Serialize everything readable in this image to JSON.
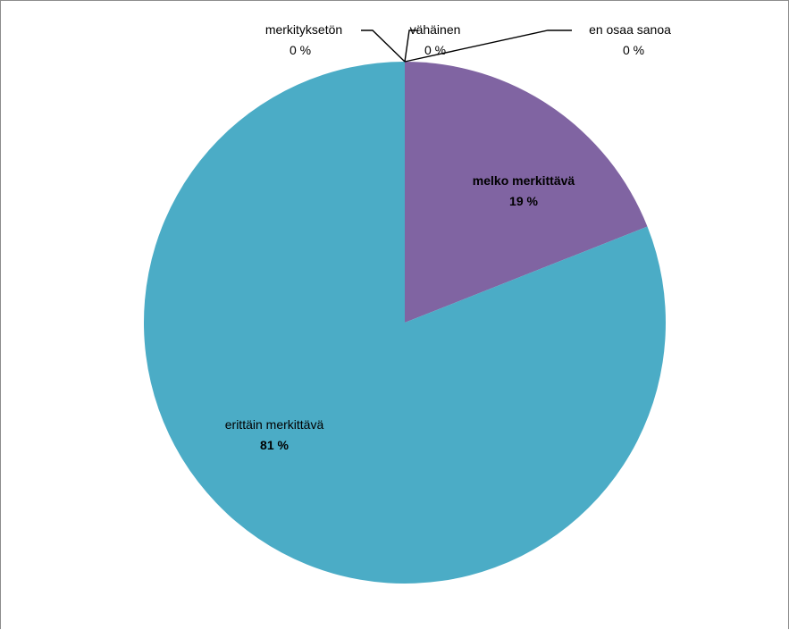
{
  "chart_data": {
    "type": "pie",
    "slices": [
      {
        "label": "melko merkittävä",
        "value": 19,
        "value_label": "19 %",
        "color": "#8064a2"
      },
      {
        "label": "erittäin merkittävä",
        "value": 81,
        "value_label": "81 %",
        "color": "#4bacc6"
      },
      {
        "label": "merkityksetön",
        "value": 0,
        "value_label": "0 %",
        "color": "#4f81bd"
      },
      {
        "label": "vähäinen",
        "value": 0,
        "value_label": "0 %",
        "color": "#c0504d"
      },
      {
        "label": "en osaa sanoa",
        "value": 0,
        "value_label": "0 %",
        "color": "#9bbb59"
      }
    ],
    "legend": "none"
  }
}
